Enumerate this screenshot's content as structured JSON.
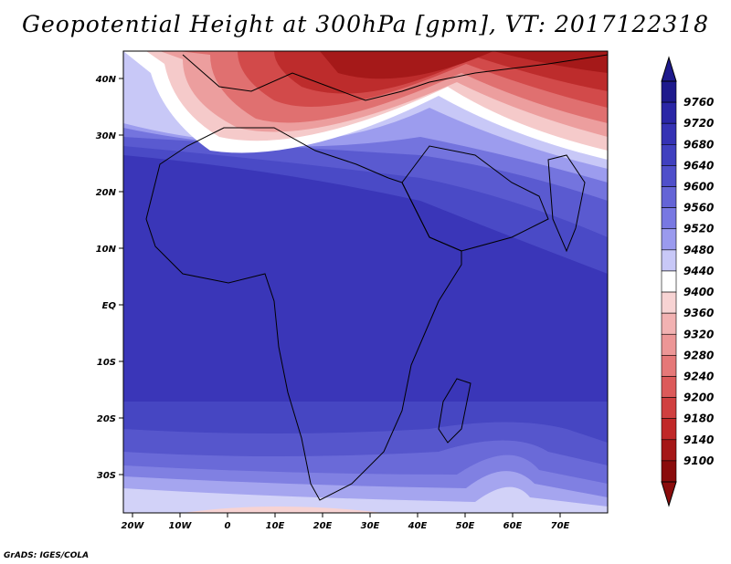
{
  "title": "Geopotential Height at 300hPa [gpm], VT: 2017122318",
  "credit": "GrADS: IGES/COLA",
  "axes": {
    "lon_labels": [
      "20W",
      "10W",
      "0",
      "10E",
      "20E",
      "30E",
      "40E",
      "50E",
      "60E",
      "70E"
    ],
    "lat_labels": [
      "40N",
      "30N",
      "20N",
      "10N",
      "EQ",
      "10S",
      "20S",
      "30S"
    ]
  },
  "colorbar": {
    "levels": [
      "9760",
      "9720",
      "9680",
      "9640",
      "9600",
      "9560",
      "9520",
      "9480",
      "9440",
      "9400",
      "9360",
      "9320",
      "9280",
      "9240",
      "9200",
      "9180",
      "9140",
      "9100"
    ],
    "colors": [
      "#1e1a8c",
      "#2a26a6",
      "#3532b4",
      "#4040bf",
      "#4f4fca",
      "#6464d6",
      "#7878e2",
      "#9a9aee",
      "#c8c8f7",
      "#ffffff",
      "#f7d3d3",
      "#f2b2b2",
      "#ec9696",
      "#e57878",
      "#dc5a5a",
      "#d04040",
      "#c02828",
      "#a51717",
      "#8a0c0c"
    ],
    "arrow_top_color": "#1e1a8c",
    "arrow_bottom_color": "#8a0c0c"
  }
}
